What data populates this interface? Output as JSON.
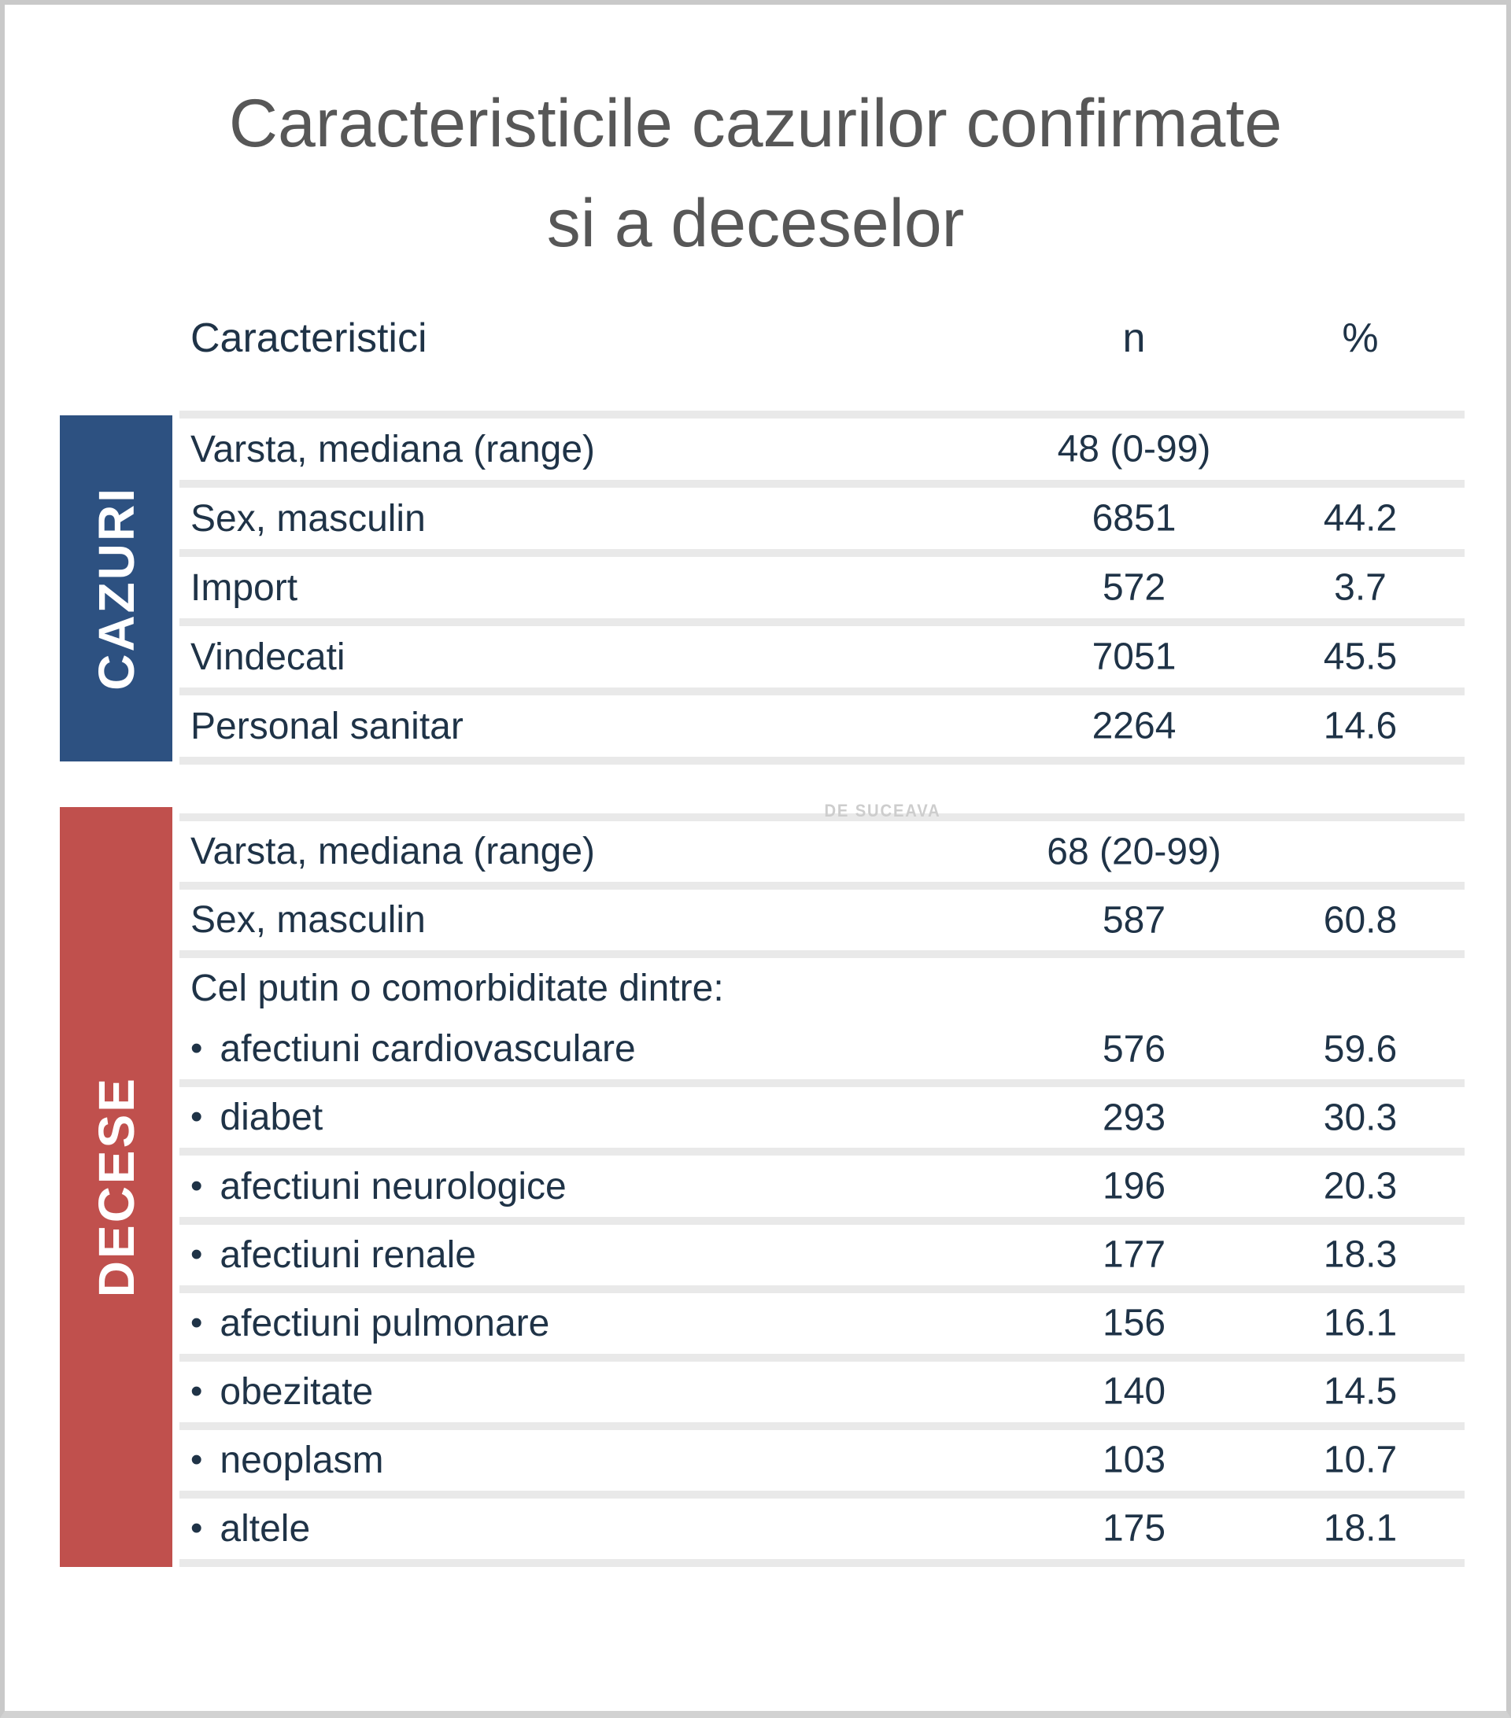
{
  "title": {
    "line1": "Caracteristicile cazurilor confirmate",
    "line2": "si a deceselor"
  },
  "watermark": "DE SUCEAVA",
  "bullet_char": "•",
  "columns": {
    "characteristic": "Caracteristici",
    "n": "n",
    "percent": "%"
  },
  "colors": {
    "cazuri_bar": "#2d5181",
    "decese_bar": "#c0504d",
    "text": "#1f3347",
    "title": "#575757",
    "row_separator": "#e9e9e9"
  },
  "sections": [
    {
      "label": "CAZURI",
      "rows": [
        {
          "label": "Varsta, mediana (range)",
          "n": "48 (0-99)",
          "percent": ""
        },
        {
          "label": "Sex, masculin",
          "n": "6851",
          "percent": "44.2"
        },
        {
          "label": "Import",
          "n": "572",
          "percent": "3.7"
        },
        {
          "label": "Vindecati",
          "n": "7051",
          "percent": "45.5"
        },
        {
          "label": "Personal sanitar",
          "n": "2264",
          "percent": "14.6"
        }
      ]
    },
    {
      "label": "DECESE",
      "rows": [
        {
          "label": "Varsta, mediana (range)",
          "n": "68 (20-99)",
          "percent": ""
        },
        {
          "label": "Sex, masculin",
          "n": "587",
          "percent": "60.8"
        },
        {
          "group_header": "Cel putin o comorbiditate dintre:",
          "label": "afectiuni cardiovasculare",
          "n": "576",
          "percent": "59.6"
        },
        {
          "label": "diabet",
          "n": "293",
          "percent": "30.3"
        },
        {
          "label": "afectiuni neurologice",
          "n": "196",
          "percent": "20.3"
        },
        {
          "label": "afectiuni renale",
          "n": "177",
          "percent": "18.3"
        },
        {
          "label": "afectiuni pulmonare",
          "n": "156",
          "percent": "16.1"
        },
        {
          "label": "obezitate",
          "n": "140",
          "percent": "14.5"
        },
        {
          "label": "neoplasm",
          "n": "103",
          "percent": "10.7"
        },
        {
          "label": "altele",
          "n": "175",
          "percent": "18.1"
        }
      ]
    }
  ]
}
